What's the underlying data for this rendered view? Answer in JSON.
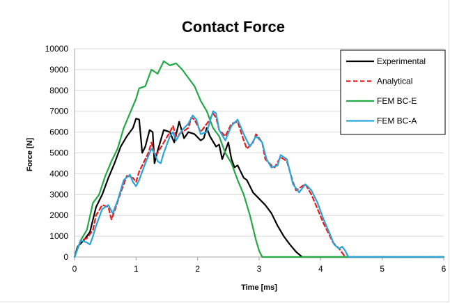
{
  "chart_data": {
    "type": "line",
    "title": "Contact Force",
    "xlabel": "Time [ms]",
    "ylabel": "Force  [N]",
    "xlim": [
      0,
      6
    ],
    "ylim": [
      0,
      10000
    ],
    "xticks": [
      0,
      1,
      2,
      3,
      4,
      5,
      6
    ],
    "yticks": [
      0,
      1000,
      2000,
      3000,
      4000,
      5000,
      6000,
      7000,
      8000,
      9000,
      10000
    ],
    "grid": "horizontal",
    "legend_position": "top-right",
    "series": [
      {
        "name": "Experimental",
        "color": "#000000",
        "dash": "solid",
        "points": [
          [
            0,
            0
          ],
          [
            0.05,
            500
          ],
          [
            0.15,
            800
          ],
          [
            0.25,
            1200
          ],
          [
            0.35,
            2400
          ],
          [
            0.45,
            3000
          ],
          [
            0.55,
            3800
          ],
          [
            0.65,
            4500
          ],
          [
            0.75,
            5300
          ],
          [
            0.85,
            5800
          ],
          [
            0.95,
            6200
          ],
          [
            1.0,
            6650
          ],
          [
            1.05,
            6600
          ],
          [
            1.1,
            5000
          ],
          [
            1.15,
            5300
          ],
          [
            1.22,
            6100
          ],
          [
            1.27,
            6000
          ],
          [
            1.3,
            4500
          ],
          [
            1.35,
            5100
          ],
          [
            1.45,
            6100
          ],
          [
            1.55,
            6000
          ],
          [
            1.62,
            5500
          ],
          [
            1.7,
            6500
          ],
          [
            1.78,
            5700
          ],
          [
            1.85,
            6000
          ],
          [
            1.95,
            5900
          ],
          [
            2.05,
            5600
          ],
          [
            2.1,
            5700
          ],
          [
            2.15,
            6200
          ],
          [
            2.2,
            5800
          ],
          [
            2.3,
            5300
          ],
          [
            2.35,
            5400
          ],
          [
            2.4,
            4700
          ],
          [
            2.45,
            5100
          ],
          [
            2.5,
            5500
          ],
          [
            2.55,
            4700
          ],
          [
            2.6,
            4300
          ],
          [
            2.65,
            4400
          ],
          [
            2.75,
            3800
          ],
          [
            2.8,
            3700
          ],
          [
            2.9,
            3100
          ],
          [
            3.0,
            2800
          ],
          [
            3.1,
            2500
          ],
          [
            3.2,
            2100
          ],
          [
            3.3,
            1500
          ],
          [
            3.4,
            1000
          ],
          [
            3.5,
            600
          ],
          [
            3.6,
            250
          ],
          [
            3.7,
            0
          ],
          [
            6.0,
            0
          ]
        ]
      },
      {
        "name": "Analytical",
        "color": "#e8191b",
        "dash": "dashed",
        "points": [
          [
            0,
            0
          ],
          [
            0.1,
            800
          ],
          [
            0.2,
            900
          ],
          [
            0.3,
            1300
          ],
          [
            0.35,
            2000
          ],
          [
            0.45,
            2500
          ],
          [
            0.55,
            2400
          ],
          [
            0.6,
            1800
          ],
          [
            0.65,
            2200
          ],
          [
            0.75,
            3100
          ],
          [
            0.85,
            3900
          ],
          [
            0.95,
            3800
          ],
          [
            1.0,
            3600
          ],
          [
            1.05,
            4100
          ],
          [
            1.1,
            4400
          ],
          [
            1.2,
            5000
          ],
          [
            1.25,
            5500
          ],
          [
            1.3,
            4900
          ],
          [
            1.35,
            5000
          ],
          [
            1.45,
            5500
          ],
          [
            1.55,
            6000
          ],
          [
            1.6,
            6300
          ],
          [
            1.65,
            5800
          ],
          [
            1.75,
            6000
          ],
          [
            1.85,
            6200
          ],
          [
            1.9,
            6700
          ],
          [
            1.95,
            6600
          ],
          [
            2.05,
            6000
          ],
          [
            2.1,
            6200
          ],
          [
            2.2,
            6600
          ],
          [
            2.25,
            6900
          ],
          [
            2.3,
            6700
          ],
          [
            2.35,
            6100
          ],
          [
            2.45,
            5800
          ],
          [
            2.55,
            6400
          ],
          [
            2.65,
            6500
          ],
          [
            2.75,
            5600
          ],
          [
            2.8,
            5200
          ],
          [
            2.9,
            5500
          ],
          [
            2.95,
            5900
          ],
          [
            3.05,
            5500
          ],
          [
            3.1,
            4700
          ],
          [
            3.2,
            4400
          ],
          [
            3.25,
            4300
          ],
          [
            3.35,
            4800
          ],
          [
            3.45,
            4600
          ],
          [
            3.55,
            3600
          ],
          [
            3.6,
            3200
          ],
          [
            3.7,
            3400
          ],
          [
            3.75,
            3500
          ],
          [
            3.85,
            3000
          ],
          [
            3.95,
            2300
          ],
          [
            4.05,
            1600
          ],
          [
            4.15,
            1000
          ],
          [
            4.2,
            700
          ],
          [
            4.3,
            400
          ],
          [
            4.4,
            0
          ],
          [
            6.0,
            0
          ]
        ]
      },
      {
        "name": "FEM BC-E",
        "color": "#22a845",
        "dash": "solid",
        "points": [
          [
            0,
            0
          ],
          [
            0.1,
            800
          ],
          [
            0.2,
            1300
          ],
          [
            0.3,
            2600
          ],
          [
            0.4,
            3000
          ],
          [
            0.5,
            3900
          ],
          [
            0.6,
            4600
          ],
          [
            0.7,
            5200
          ],
          [
            0.8,
            6200
          ],
          [
            0.9,
            6900
          ],
          [
            1.0,
            7600
          ],
          [
            1.05,
            8100
          ],
          [
            1.15,
            8200
          ],
          [
            1.25,
            9000
          ],
          [
            1.35,
            8800
          ],
          [
            1.45,
            9400
          ],
          [
            1.55,
            9200
          ],
          [
            1.65,
            9300
          ],
          [
            1.75,
            9000
          ],
          [
            1.85,
            8600
          ],
          [
            1.95,
            8200
          ],
          [
            2.05,
            7500
          ],
          [
            2.15,
            7000
          ],
          [
            2.25,
            6200
          ],
          [
            2.35,
            5800
          ],
          [
            2.45,
            5000
          ],
          [
            2.55,
            4500
          ],
          [
            2.65,
            3700
          ],
          [
            2.75,
            3000
          ],
          [
            2.85,
            2000
          ],
          [
            2.95,
            800
          ],
          [
            3.0,
            300
          ],
          [
            3.05,
            0
          ],
          [
            6.0,
            0
          ]
        ]
      },
      {
        "name": "FEM BC-A",
        "color": "#29a4da",
        "dash": "solid",
        "points": [
          [
            0,
            0
          ],
          [
            0.1,
            800
          ],
          [
            0.2,
            700
          ],
          [
            0.25,
            600
          ],
          [
            0.3,
            1000
          ],
          [
            0.35,
            1500
          ],
          [
            0.45,
            2300
          ],
          [
            0.55,
            2500
          ],
          [
            0.62,
            2100
          ],
          [
            0.7,
            2700
          ],
          [
            0.8,
            3700
          ],
          [
            0.9,
            3950
          ],
          [
            0.95,
            3600
          ],
          [
            1.0,
            3400
          ],
          [
            1.05,
            3700
          ],
          [
            1.15,
            4500
          ],
          [
            1.25,
            5200
          ],
          [
            1.3,
            5000
          ],
          [
            1.35,
            4600
          ],
          [
            1.4,
            4500
          ],
          [
            1.45,
            5000
          ],
          [
            1.55,
            5800
          ],
          [
            1.6,
            6000
          ],
          [
            1.65,
            5600
          ],
          [
            1.75,
            6100
          ],
          [
            1.85,
            6400
          ],
          [
            1.92,
            6800
          ],
          [
            1.98,
            6600
          ],
          [
            2.05,
            5900
          ],
          [
            2.15,
            6000
          ],
          [
            2.2,
            6500
          ],
          [
            2.25,
            7000
          ],
          [
            2.3,
            6900
          ],
          [
            2.35,
            6100
          ],
          [
            2.45,
            5600
          ],
          [
            2.55,
            6300
          ],
          [
            2.65,
            6600
          ],
          [
            2.75,
            5900
          ],
          [
            2.85,
            5300
          ],
          [
            2.95,
            5800
          ],
          [
            3.05,
            5500
          ],
          [
            3.12,
            4700
          ],
          [
            3.2,
            4300
          ],
          [
            3.3,
            4400
          ],
          [
            3.35,
            4900
          ],
          [
            3.45,
            4700
          ],
          [
            3.55,
            3500
          ],
          [
            3.65,
            3100
          ],
          [
            3.75,
            3500
          ],
          [
            3.85,
            3200
          ],
          [
            3.95,
            2600
          ],
          [
            4.05,
            1800
          ],
          [
            4.15,
            1100
          ],
          [
            4.22,
            600
          ],
          [
            4.3,
            400
          ],
          [
            4.35,
            500
          ],
          [
            4.4,
            300
          ],
          [
            4.45,
            0
          ],
          [
            6.0,
            0
          ]
        ]
      }
    ]
  }
}
